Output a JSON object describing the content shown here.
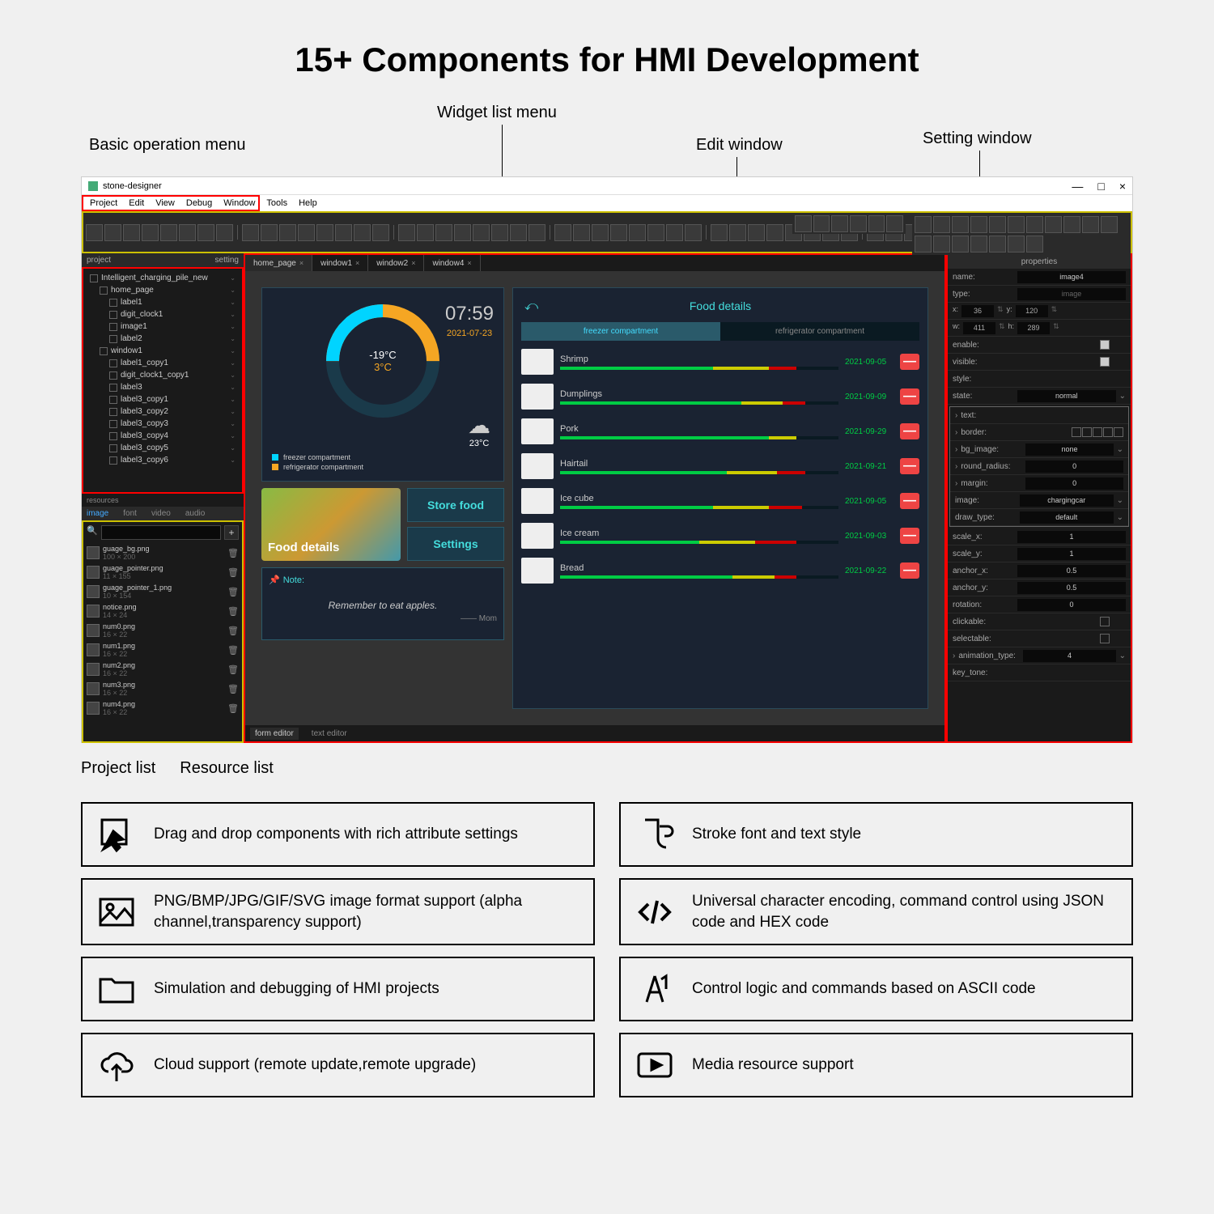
{
  "title": "15+ Components for HMI Development",
  "callouts": {
    "basic_op": "Basic operation menu",
    "widget_list": "Widget list menu",
    "edit_win": "Edit window",
    "setting_win": "Setting window",
    "project_list": "Project list",
    "resource_list": "Resource list"
  },
  "app": {
    "title": "stone-designer",
    "menu": [
      "Project",
      "Edit",
      "View",
      "Debug",
      "Window",
      "Tools",
      "Help"
    ],
    "project_tab": "project",
    "setting_tab": "setting",
    "tree": [
      {
        "l": "Intelligent_charging_pile_new",
        "i": 0
      },
      {
        "l": "home_page",
        "i": 1
      },
      {
        "l": "label1",
        "i": 2
      },
      {
        "l": "digit_clock1",
        "i": 2
      },
      {
        "l": "image1",
        "i": 2
      },
      {
        "l": "label2",
        "i": 2
      },
      {
        "l": "window1",
        "i": 1
      },
      {
        "l": "label1_copy1",
        "i": 2
      },
      {
        "l": "digit_clock1_copy1",
        "i": 2
      },
      {
        "l": "label3",
        "i": 2
      },
      {
        "l": "label3_copy1",
        "i": 2
      },
      {
        "l": "label3_copy2",
        "i": 2
      },
      {
        "l": "label3_copy3",
        "i": 2
      },
      {
        "l": "label3_copy4",
        "i": 2
      },
      {
        "l": "label3_copy5",
        "i": 2
      },
      {
        "l": "label3_copy6",
        "i": 2
      }
    ],
    "resources_label": "resources",
    "res_tabs": [
      "image",
      "font",
      "video",
      "audio"
    ],
    "res_items": [
      {
        "n": "guage_bg.png",
        "d": "100 × 200"
      },
      {
        "n": "guage_pointer.png",
        "d": "11 × 155"
      },
      {
        "n": "guage_pointer_1.png",
        "d": "10 × 154"
      },
      {
        "n": "notice.png",
        "d": "14 × 24"
      },
      {
        "n": "num0.png",
        "d": "16 × 22"
      },
      {
        "n": "num1.png",
        "d": "16 × 22"
      },
      {
        "n": "num2.png",
        "d": "16 × 22"
      },
      {
        "n": "num3.png",
        "d": "16 × 22"
      },
      {
        "n": "num4.png",
        "d": "16 × 22"
      }
    ],
    "tabs": [
      "home_page",
      "window1",
      "window2",
      "window4"
    ],
    "bottom_tabs": [
      "form editor",
      "text editor"
    ]
  },
  "design": {
    "temp1": "-19°C",
    "temp2": "3°C",
    "time": "07:59",
    "date": "2021-07-23",
    "weather_temp": "23°C",
    "legend1": "freezer compartment",
    "legend2": "refrigerator compartment",
    "food_details_label": "Food details",
    "store_food": "Store food",
    "settings": "Settings",
    "note_label": "Note:",
    "note_text": "Remember to eat apples.",
    "note_sig": "—— Mom",
    "food_header": "Food details",
    "comp_tab1": "freezer compartment",
    "comp_tab2": "refrigerator compartment",
    "foods": [
      {
        "n": "Shrimp",
        "d": "2021-09-05",
        "g": 55,
        "y": 20,
        "r": 10
      },
      {
        "n": "Dumplings",
        "d": "2021-09-09",
        "g": 65,
        "y": 15,
        "r": 8
      },
      {
        "n": "Pork",
        "d": "2021-09-29",
        "g": 75,
        "y": 10,
        "r": 0
      },
      {
        "n": "Hairtail",
        "d": "2021-09-21",
        "g": 60,
        "y": 18,
        "r": 10
      },
      {
        "n": "Ice cube",
        "d": "2021-09-05",
        "g": 55,
        "y": 20,
        "r": 12
      },
      {
        "n": "Ice cream",
        "d": "2021-09-03",
        "g": 50,
        "y": 20,
        "r": 15
      },
      {
        "n": "Bread",
        "d": "2021-09-22",
        "g": 62,
        "y": 15,
        "r": 8
      }
    ]
  },
  "props": {
    "header": "properties",
    "name_l": "name:",
    "name_v": "image4",
    "type_l": "type:",
    "type_v": "image",
    "x_l": "x:",
    "x_v": "36",
    "y_l": "y:",
    "y_v": "120",
    "w_l": "w:",
    "w_v": "411",
    "h_l": "h:",
    "h_v": "289",
    "enable_l": "enable:",
    "visible_l": "visible:",
    "style_l": "style:",
    "state_l": "state:",
    "state_v": "normal",
    "text_l": "text:",
    "border_l": "border:",
    "bg_l": "bg_image:",
    "bg_v": "none",
    "round_l": "round_radius:",
    "round_v": "0",
    "margin_l": "margin:",
    "margin_v": "0",
    "image_l": "image:",
    "image_v": "chargingcar",
    "draw_l": "draw_type:",
    "draw_v": "default",
    "sx_l": "scale_x:",
    "sx_v": "1",
    "sy_l": "scale_y:",
    "sy_v": "1",
    "ax_l": "anchor_x:",
    "ax_v": "0.5",
    "ay_l": "anchor_y:",
    "ay_v": "0.5",
    "rot_l": "rotation:",
    "rot_v": "0",
    "click_l": "clickable:",
    "sel_l": "selectable:",
    "anim_l": "animation_type:",
    "anim_v": "4",
    "key_l": "key_tone:"
  },
  "features": [
    [
      {
        "i": "drag",
        "t": "Drag and drop components with rich attribute settings"
      },
      {
        "i": "img",
        "t": "PNG/BMP/JPG/GIF/SVG image format support (alpha channel,transparency support)"
      },
      {
        "i": "folder",
        "t": "Simulation and debugging of HMI projects"
      },
      {
        "i": "cloud",
        "t": "Cloud support (remote update,remote upgrade)"
      }
    ],
    [
      {
        "i": "font",
        "t": "Stroke font and text style"
      },
      {
        "i": "code",
        "t": "Universal character encoding, command control using JSON code and HEX code"
      },
      {
        "i": "ascii",
        "t": "Control logic and commands based on ASCII code"
      },
      {
        "i": "media",
        "t": "Media resource support"
      }
    ]
  ]
}
